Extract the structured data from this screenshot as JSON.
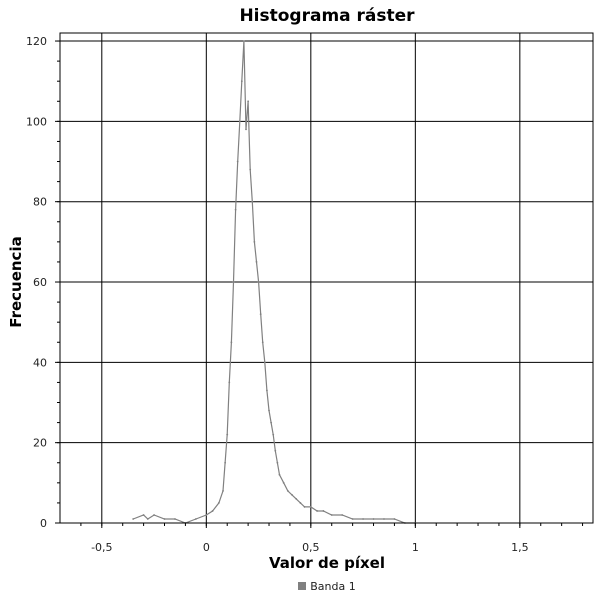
{
  "chart_data": {
    "type": "line",
    "title": "Histograma ráster",
    "xlabel": "Valor de píxel",
    "ylabel": "Frecuencia",
    "xlim": [
      -0.7,
      1.85
    ],
    "ylim": [
      0,
      122
    ],
    "xticks": [
      -0.5,
      0,
      0.5,
      1,
      1.5
    ],
    "xtick_labels": [
      "-0,5",
      "0",
      "0,5",
      "1",
      "1,5"
    ],
    "yticks": [
      0,
      20,
      40,
      60,
      80,
      100,
      120
    ],
    "ytick_labels": [
      "0",
      "20",
      "40",
      "60",
      "80",
      "100",
      "120"
    ],
    "grid": true,
    "legend_position": "bottom-center",
    "series": [
      {
        "name": "Banda 1",
        "color": "#808080",
        "x": [
          -0.35,
          -0.3,
          -0.28,
          -0.25,
          -0.2,
          -0.15,
          -0.1,
          -0.05,
          0,
          0.03,
          0.06,
          0.08,
          0.09,
          0.1,
          0.11,
          0.12,
          0.13,
          0.14,
          0.15,
          0.16,
          0.17,
          0.18,
          0.19,
          0.2,
          0.21,
          0.22,
          0.23,
          0.24,
          0.25,
          0.26,
          0.27,
          0.28,
          0.29,
          0.3,
          0.31,
          0.32,
          0.33,
          0.34,
          0.35,
          0.37,
          0.39,
          0.41,
          0.43,
          0.45,
          0.47,
          0.5,
          0.53,
          0.56,
          0.6,
          0.65,
          0.7,
          0.75,
          0.8,
          0.85,
          0.9,
          0.95,
          1.0
        ],
        "values": [
          1,
          2,
          1,
          2,
          1,
          1,
          0,
          1,
          2,
          3,
          5,
          8,
          15,
          22,
          35,
          45,
          60,
          78,
          90,
          100,
          110,
          120,
          98,
          105,
          88,
          80,
          70,
          65,
          60,
          52,
          45,
          40,
          33,
          28,
          25,
          22,
          18,
          15,
          12,
          10,
          8,
          7,
          6,
          5,
          4,
          4,
          3,
          3,
          2,
          2,
          1,
          1,
          1,
          1,
          1,
          0,
          0
        ]
      }
    ]
  }
}
